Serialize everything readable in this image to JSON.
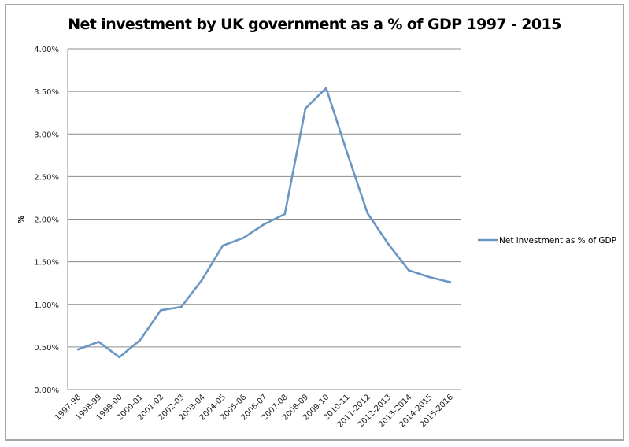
{
  "chart_data": {
    "type": "line",
    "title": "Net investment by UK government as a % of GDP 1997 - 2015",
    "xlabel": "",
    "ylabel": "%",
    "ylim": [
      0,
      4.0
    ],
    "yticks": [
      "0.00%",
      "0.50%",
      "1.00%",
      "1.50%",
      "2.00%",
      "2.50%",
      "3.00%",
      "3.50%",
      "4.00%"
    ],
    "ytick_values": [
      0,
      0.5,
      1.0,
      1.5,
      2.0,
      2.5,
      3.0,
      3.5,
      4.0
    ],
    "grid": true,
    "legend_position": "right",
    "categories": [
      "1997-98",
      "1998-99",
      "1999-00",
      "2000-01",
      "2001-02",
      "2002-03",
      "2003-04",
      "2004-05",
      "2005-06",
      "2006-07",
      "2007-08",
      "2008-09",
      "2009-10",
      "2010-11",
      "2011-2012",
      "2012-2013",
      "2013-2014",
      "2014-2015",
      "2015-2016"
    ],
    "series": [
      {
        "name": "Net investment as % of GDP",
        "color": "#6a96c4",
        "values": [
          0.47,
          0.56,
          0.38,
          0.58,
          0.93,
          0.97,
          1.29,
          1.69,
          1.78,
          1.94,
          2.06,
          3.3,
          3.54,
          2.79,
          2.07,
          1.71,
          1.4,
          1.32,
          1.26
        ]
      }
    ]
  }
}
